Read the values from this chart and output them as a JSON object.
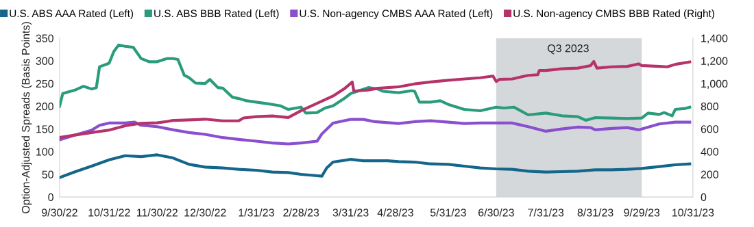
{
  "chart_data": {
    "type": "line",
    "ylabel": "Option-Adjusted Spreads (Basis Points)",
    "legend": "top",
    "grid": false,
    "marker": "none",
    "line_style": "solid",
    "xlim": [
      "2022-09-30",
      "2023-10-31"
    ],
    "xticks": [
      {
        "value": "2022-09-30",
        "label": "9/30/22"
      },
      {
        "value": "2022-10-31",
        "label": "10/31/22"
      },
      {
        "value": "2022-11-30",
        "label": "11/30/22"
      },
      {
        "value": "2022-12-30",
        "label": "12/30/22"
      },
      {
        "value": "2023-01-31",
        "label": "1/31/23"
      },
      {
        "value": "2023-02-28",
        "label": "2/28/23"
      },
      {
        "value": "2023-03-31",
        "label": "3/31/23"
      },
      {
        "value": "2023-04-28",
        "label": "4/28/23"
      },
      {
        "value": "2023-05-31",
        "label": "5/31/23"
      },
      {
        "value": "2023-06-30",
        "label": "6/30/23"
      },
      {
        "value": "2023-07-31",
        "label": "7/31/23"
      },
      {
        "value": "2023-08-31",
        "label": "8/31/23"
      },
      {
        "value": "2023-09-29",
        "label": "9/29/23"
      },
      {
        "value": "2023-10-31",
        "label": "10/31/23"
      }
    ],
    "ylim": [
      0,
      350
    ],
    "yticks": [
      0,
      50,
      100,
      150,
      200,
      250,
      300,
      350
    ],
    "y2lim": [
      0,
      1400
    ],
    "y2ticks": [
      0,
      200,
      400,
      600,
      800,
      {
        "value": 1000,
        "label": "1,000"
      },
      {
        "value": 1200,
        "label": "1,200"
      },
      {
        "value": 1400,
        "label": "1,400"
      }
    ],
    "bands": [
      {
        "axis": "x",
        "from": "2023-06-30",
        "to": "2023-09-29",
        "label": "Q3 2023",
        "color": "#d5d8db"
      }
    ],
    "series": [
      {
        "name": "U.S. ABS AAA Rated (Left)",
        "color": "#14668a",
        "x": [
          "2022-09-30",
          "2022-10-10",
          "2022-10-20",
          "2022-10-31",
          "2022-11-10",
          "2022-11-20",
          "2022-11-30",
          "2022-12-10",
          "2022-12-20",
          "2022-12-30",
          "2023-01-10",
          "2023-01-20",
          "2023-01-31",
          "2023-02-10",
          "2023-02-20",
          "2023-02-28",
          "2023-03-10",
          "2023-03-13",
          "2023-03-16",
          "2023-03-20",
          "2023-03-31",
          "2023-04-08",
          "2023-04-23",
          "2023-04-30",
          "2023-05-10",
          "2023-05-20",
          "2023-05-31",
          "2023-06-10",
          "2023-06-20",
          "2023-06-30",
          "2023-07-10",
          "2023-07-20",
          "2023-07-31",
          "2023-08-10",
          "2023-08-20",
          "2023-08-31",
          "2023-09-10",
          "2023-09-20",
          "2023-09-29",
          "2023-10-10",
          "2023-10-20",
          "2023-10-29"
        ],
        "values": [
          43,
          56,
          68,
          82,
          91,
          89,
          93,
          86,
          72,
          66,
          64,
          61,
          59,
          55,
          54,
          50,
          47,
          46,
          64,
          77,
          83,
          80,
          80,
          78,
          77,
          73,
          72,
          68,
          64,
          62,
          61,
          57,
          55,
          56,
          57,
          60,
          60,
          61,
          63,
          67,
          71,
          73
        ]
      },
      {
        "name": "U.S. ABS BBB Rated (Left)",
        "color": "#2a9c7c",
        "x": [
          "2022-09-30",
          "2022-10-02",
          "2022-10-10",
          "2022-10-15",
          "2022-10-20",
          "2022-10-23",
          "2022-10-25",
          "2022-10-29",
          "2022-10-31",
          "2022-11-03",
          "2022-11-06",
          "2022-11-10",
          "2022-11-15",
          "2022-11-20",
          "2022-11-25",
          "2022-11-30",
          "2022-12-06",
          "2022-12-10",
          "2022-12-13",
          "2022-12-17",
          "2022-12-20",
          "2022-12-24",
          "2022-12-30",
          "2023-01-02",
          "2023-01-07",
          "2023-01-10",
          "2023-01-16",
          "2023-01-20",
          "2023-01-25",
          "2023-01-31",
          "2023-02-06",
          "2023-02-10",
          "2023-02-15",
          "2023-02-20",
          "2023-02-28",
          "2023-03-03",
          "2023-03-10",
          "2023-03-15",
          "2023-03-20",
          "2023-03-27",
          "2023-03-31",
          "2023-04-11",
          "2023-04-17",
          "2023-04-20",
          "2023-04-30",
          "2023-05-08",
          "2023-05-10",
          "2023-05-13",
          "2023-05-20",
          "2023-05-26",
          "2023-05-31",
          "2023-06-10",
          "2023-06-20",
          "2023-06-30",
          "2023-07-05",
          "2023-07-11",
          "2023-07-20",
          "2023-07-31",
          "2023-08-10",
          "2023-08-20",
          "2023-08-25",
          "2023-08-31",
          "2023-09-10",
          "2023-09-20",
          "2023-09-29",
          "2023-10-03",
          "2023-10-10",
          "2023-10-13",
          "2023-10-18",
          "2023-10-20",
          "2023-10-26",
          "2023-10-29"
        ],
        "values": [
          200,
          228,
          236,
          244,
          238,
          241,
          287,
          292,
          295,
          321,
          335,
          332,
          330,
          305,
          298,
          298,
          305,
          305,
          303,
          268,
          263,
          251,
          250,
          259,
          241,
          240,
          220,
          217,
          212,
          209,
          206,
          204,
          201,
          193,
          198,
          185,
          186,
          196,
          201,
          217,
          228,
          241,
          238,
          233,
          230,
          234,
          233,
          209,
          209,
          212,
          204,
          193,
          190,
          198,
          196,
          198,
          181,
          185,
          179,
          177,
          169,
          175,
          174,
          173,
          174,
          185,
          182,
          186,
          179,
          193,
          195,
          198
        ]
      },
      {
        "name": "U.S. Non-agency CMBS AAA Rated (Left)",
        "color": "#8a4fcf",
        "x": [
          "2022-09-30",
          "2022-10-10",
          "2022-10-20",
          "2022-10-25",
          "2022-10-31",
          "2022-11-10",
          "2022-11-16",
          "2022-11-20",
          "2022-11-30",
          "2022-12-10",
          "2022-12-20",
          "2022-12-30",
          "2023-01-10",
          "2023-01-20",
          "2023-01-31",
          "2023-02-10",
          "2023-02-20",
          "2023-02-28",
          "2023-03-10",
          "2023-03-13",
          "2023-03-20",
          "2023-03-31",
          "2023-04-08",
          "2023-04-15",
          "2023-04-30",
          "2023-05-10",
          "2023-05-20",
          "2023-05-31",
          "2023-06-10",
          "2023-06-20",
          "2023-06-30",
          "2023-07-10",
          "2023-07-20",
          "2023-07-31",
          "2023-08-10",
          "2023-08-20",
          "2023-08-28",
          "2023-08-31",
          "2023-09-10",
          "2023-09-20",
          "2023-09-27",
          "2023-10-10",
          "2023-10-20",
          "2023-10-29"
        ],
        "values": [
          126,
          137,
          147,
          158,
          163,
          163,
          165,
          158,
          155,
          148,
          142,
          138,
          131,
          127,
          123,
          119,
          117,
          119,
          123,
          139,
          163,
          171,
          171,
          166,
          162,
          166,
          168,
          165,
          162,
          163,
          163,
          163,
          155,
          145,
          150,
          154,
          153,
          148,
          151,
          153,
          148,
          161,
          165,
          165
        ]
      },
      {
        "name": "U.S. Non-agency CMBS BBB Rated (Right)",
        "color": "#b5336a",
        "axis": "y2",
        "x": [
          "2022-09-30",
          "2022-10-10",
          "2022-10-20",
          "2022-10-31",
          "2022-11-10",
          "2022-11-20",
          "2022-11-30",
          "2022-12-06",
          "2022-12-10",
          "2022-12-20",
          "2022-12-30",
          "2023-01-10",
          "2023-01-20",
          "2023-01-23",
          "2023-01-31",
          "2023-02-10",
          "2023-02-20",
          "2023-02-28",
          "2023-03-10",
          "2023-03-20",
          "2023-03-27",
          "2023-04-01",
          "2023-04-02",
          "2023-04-11",
          "2023-04-17",
          "2023-04-30",
          "2023-05-10",
          "2023-05-20",
          "2023-05-31",
          "2023-06-10",
          "2023-06-20",
          "2023-06-28",
          "2023-06-30",
          "2023-07-02",
          "2023-07-10",
          "2023-07-20",
          "2023-07-26",
          "2023-07-27",
          "2023-07-31",
          "2023-08-10",
          "2023-08-20",
          "2023-08-28",
          "2023-08-30",
          "2023-09-01",
          "2023-09-10",
          "2023-09-20",
          "2023-09-27",
          "2023-09-29",
          "2023-10-10",
          "2023-10-15",
          "2023-10-20",
          "2023-10-29"
        ],
        "values": [
          525,
          547,
          568,
          590,
          628,
          650,
          654,
          665,
          675,
          680,
          686,
          671,
          671,
          697,
          708,
          714,
          701,
          761,
          825,
          890,
          954,
          1014,
          933,
          943,
          958,
          971,
          997,
          1014,
          1029,
          1040,
          1051,
          1066,
          1018,
          1036,
          1040,
          1072,
          1078,
          1115,
          1115,
          1130,
          1136,
          1158,
          1194,
          1136,
          1147,
          1151,
          1173,
          1158,
          1151,
          1147,
          1169,
          1190
        ]
      }
    ]
  }
}
